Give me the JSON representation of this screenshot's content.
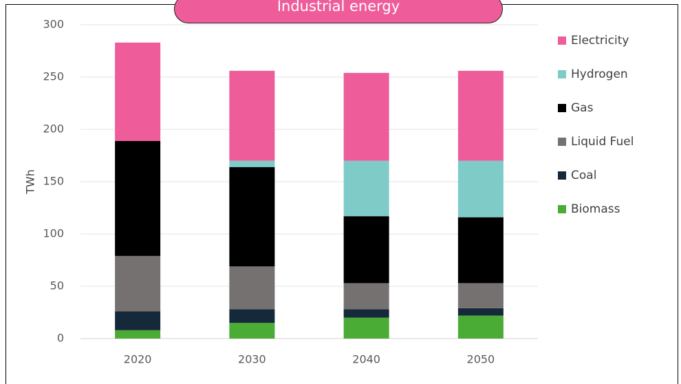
{
  "chart_data": {
    "type": "bar",
    "stacked": true,
    "title": "Industrial energy",
    "xlabel": "",
    "ylabel": "TWh",
    "ylim": [
      0,
      300
    ],
    "yticks": [
      0,
      50,
      100,
      150,
      200,
      250,
      300
    ],
    "grid": true,
    "legend_position": "right",
    "categories": [
      "2020",
      "2030",
      "2040",
      "2050"
    ],
    "series": [
      {
        "name": "Biomass",
        "color": "#4aab35",
        "values": [
          8,
          15,
          20,
          22
        ]
      },
      {
        "name": "Coal",
        "color": "#16293a",
        "values": [
          18,
          13,
          8,
          7
        ]
      },
      {
        "name": "Liquid Fuel",
        "color": "#757171",
        "values": [
          53,
          41,
          25,
          24
        ]
      },
      {
        "name": "Gas",
        "color": "#000000",
        "values": [
          110,
          95,
          64,
          63
        ]
      },
      {
        "name": "Hydrogen",
        "color": "#7fcbc8",
        "values": [
          0,
          6,
          53,
          54
        ]
      },
      {
        "name": "Electricity",
        "color": "#ee5d9a",
        "values": [
          94,
          86,
          84,
          86
        ]
      }
    ],
    "legend_order": [
      "Electricity",
      "Hydrogen",
      "Gas",
      "Liquid Fuel",
      "Coal",
      "Biomass"
    ]
  }
}
